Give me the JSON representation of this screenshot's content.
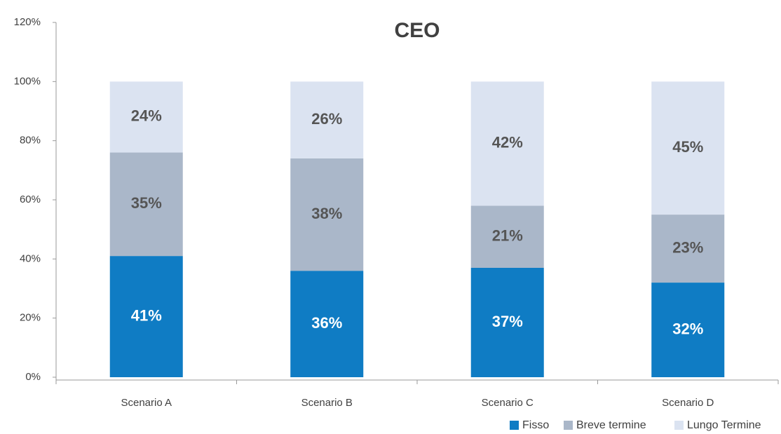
{
  "chart_data": {
    "type": "stacked_bar",
    "title": "CEO",
    "categories": [
      "Scenario A",
      "Scenario B",
      "Scenario C",
      "Scenario D"
    ],
    "series": [
      {
        "name": "Fisso",
        "color": "#0f7cc4",
        "values": [
          41,
          36,
          37,
          32
        ],
        "value_labels": [
          "41%",
          "36%",
          "37%",
          "32%"
        ]
      },
      {
        "name": "Breve termine",
        "color": "#aab7c9",
        "values": [
          35,
          38,
          21,
          23
        ],
        "value_labels": [
          "35%",
          "38%",
          "21%",
          "23%"
        ]
      },
      {
        "name": "Lungo Termine",
        "color": "#dbe3f1",
        "values": [
          24,
          26,
          42,
          45
        ],
        "value_labels": [
          "24%",
          "26%",
          "42%",
          "45%"
        ]
      }
    ],
    "ylim": [
      0,
      120
    ],
    "yticks": [
      {
        "value": 0,
        "label": "0%"
      },
      {
        "value": 20,
        "label": "20%"
      },
      {
        "value": 40,
        "label": "40%"
      },
      {
        "value": 60,
        "label": "60%"
      },
      {
        "value": 80,
        "label": "80%"
      },
      {
        "value": 100,
        "label": "100%"
      },
      {
        "value": 120,
        "label": "120%"
      }
    ],
    "legend": "bottom-right"
  }
}
